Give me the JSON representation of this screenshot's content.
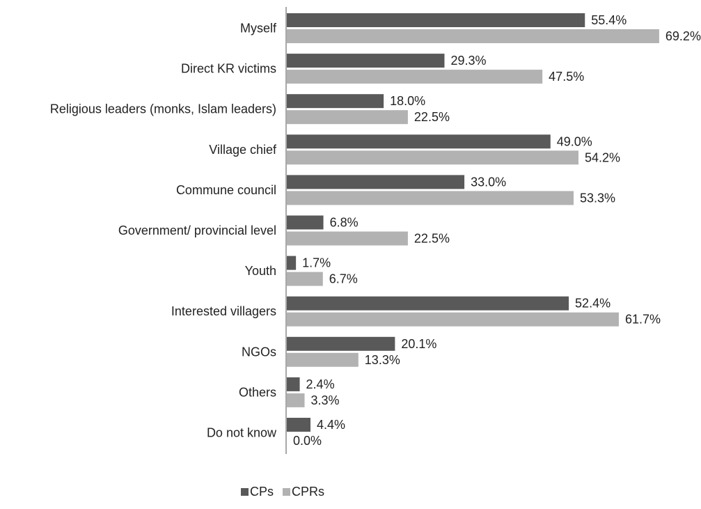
{
  "chart_data": {
    "type": "bar",
    "orientation": "horizontal",
    "categories": [
      "Myself",
      "Direct KR victims",
      "Religious leaders (monks, Islam leaders)",
      "Village chief",
      "Commune council",
      "Government/ provincial level",
      "Youth",
      "Interested villagers",
      "NGOs",
      "Others",
      "Do not know"
    ],
    "series": [
      {
        "name": "CPs",
        "color": "#595959",
        "values": [
          55.4,
          29.3,
          18.0,
          49.0,
          33.0,
          6.8,
          1.7,
          52.4,
          20.1,
          2.4,
          4.4
        ],
        "labels": [
          "55.4%",
          "29.3%",
          "18.0%",
          "49.0%",
          "33.0%",
          "6.8%",
          "1.7%",
          "52.4%",
          "20.1%",
          "2.4%",
          "4.4%"
        ]
      },
      {
        "name": "CPRs",
        "color": "#b2b2b2",
        "values": [
          69.2,
          47.5,
          22.5,
          54.2,
          53.3,
          22.5,
          6.7,
          61.7,
          13.3,
          3.3,
          0.0
        ],
        "labels": [
          "69.2%",
          "47.5%",
          "22.5%",
          "54.2%",
          "53.3%",
          "22.5%",
          "6.7%",
          "61.7%",
          "13.3%",
          "3.3%",
          "0.0%"
        ]
      }
    ],
    "xlim": [
      0,
      80
    ],
    "grid": false,
    "legend": "bottom-center"
  }
}
